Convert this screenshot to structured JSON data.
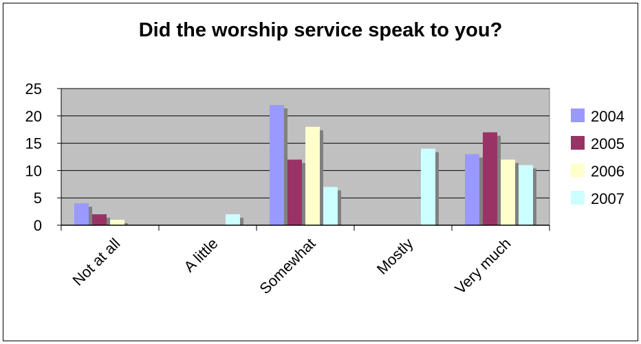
{
  "chart_data": {
    "type": "bar",
    "title": "Did the worship service speak to you?",
    "categories": [
      "Not at all",
      "A little",
      "Somewhat",
      "Mostly",
      "Very much"
    ],
    "series": [
      {
        "name": "2004",
        "values": [
          4,
          0,
          22,
          0,
          13
        ]
      },
      {
        "name": "2005",
        "values": [
          2,
          0,
          12,
          0,
          17
        ]
      },
      {
        "name": "2006",
        "values": [
          1,
          0,
          18,
          0,
          12
        ]
      },
      {
        "name": "2007",
        "values": [
          0,
          2,
          7,
          14,
          11
        ]
      }
    ],
    "yticks": [
      "0",
      "5",
      "10",
      "15",
      "20",
      "25"
    ],
    "ylim": [
      0,
      25
    ],
    "xlabel": "",
    "ylabel": "",
    "grid": true,
    "legend_position": "right",
    "colors": {
      "plot_background": "#c0c0c0",
      "series": [
        "#9999ff",
        "#993366",
        "#ffffcc",
        "#ccffff"
      ],
      "shadow": "#808080"
    }
  }
}
